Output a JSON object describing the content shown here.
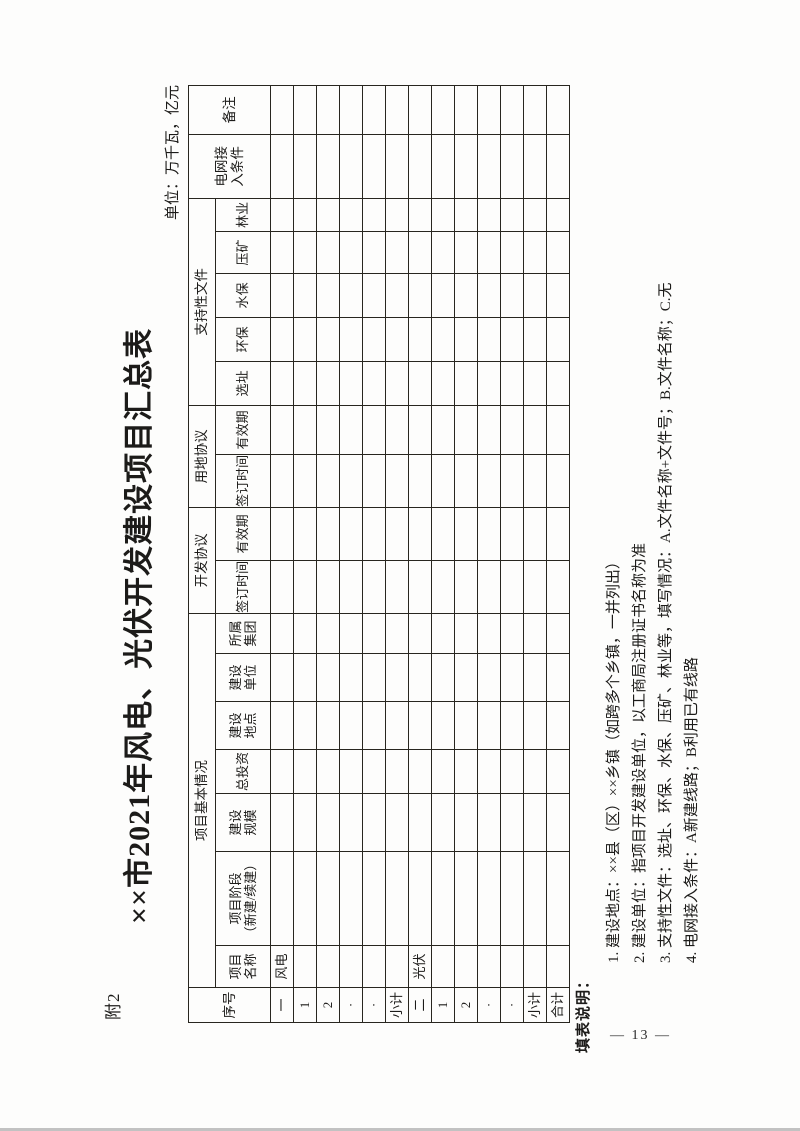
{
  "page": {
    "attachment_label": "附2",
    "title": "××市2021年风电、光伏开发建设项目汇总表",
    "unit_note": "单位：万千瓦，亿元",
    "page_number": "— 13 —"
  },
  "table": {
    "h1": {
      "seq": "序号",
      "basic": "项目基本情况",
      "dev": "开发协议",
      "land": "用地协议",
      "support": "支持性文件",
      "grid": [
        "电网接",
        "入条件"
      ],
      "remark": "备注"
    },
    "h2": {
      "name": [
        "项目",
        "名称"
      ],
      "phase": [
        "项目阶段",
        "（新建/续建）"
      ],
      "scale": [
        "建设",
        "规模"
      ],
      "invest": [
        "总投资"
      ],
      "location": [
        "建设",
        "地点"
      ],
      "builder": [
        "建设",
        "单位"
      ],
      "group": [
        "所属",
        "集团"
      ],
      "sign1": [
        "签订时间"
      ],
      "valid1": [
        "有效期"
      ],
      "sign2": [
        "签订时间"
      ],
      "valid2": [
        "有效期"
      ],
      "siting": [
        "选址"
      ],
      "env": [
        "环保"
      ],
      "water": [
        "水保"
      ],
      "mining": [
        "压矿"
      ],
      "forest": [
        "林业"
      ]
    },
    "empty_cols": 17,
    "rows": [
      {
        "seq": "一",
        "name": "风电"
      },
      {
        "seq": "1",
        "name": ""
      },
      {
        "seq": "2",
        "name": ""
      },
      {
        "seq": "·",
        "name": ""
      },
      {
        "seq": "·",
        "name": ""
      },
      {
        "seq": "小计",
        "name": ""
      },
      {
        "seq": "二",
        "name": "光伏"
      },
      {
        "seq": "1",
        "name": ""
      },
      {
        "seq": "2",
        "name": ""
      },
      {
        "seq": "·",
        "name": ""
      },
      {
        "seq": "·",
        "name": ""
      },
      {
        "seq": "小计",
        "name": ""
      },
      {
        "seq": "合计",
        "name": ""
      }
    ]
  },
  "notes": {
    "heading": "填表说明：",
    "items": [
      "1. 建设地点：××县（区）××乡镇（如跨多个乡镇，一并列出）",
      "2. 建设单位：指项目开发建设单位，以工商局注册证书名称为准",
      "3. 支持性文件：选址、环保、水保、压矿、林业等，填写情况：A.文件名称+文件号；B.文件名称；C.无",
      "4. 电网接入条件：A新建线路；B利用已有线路"
    ]
  }
}
